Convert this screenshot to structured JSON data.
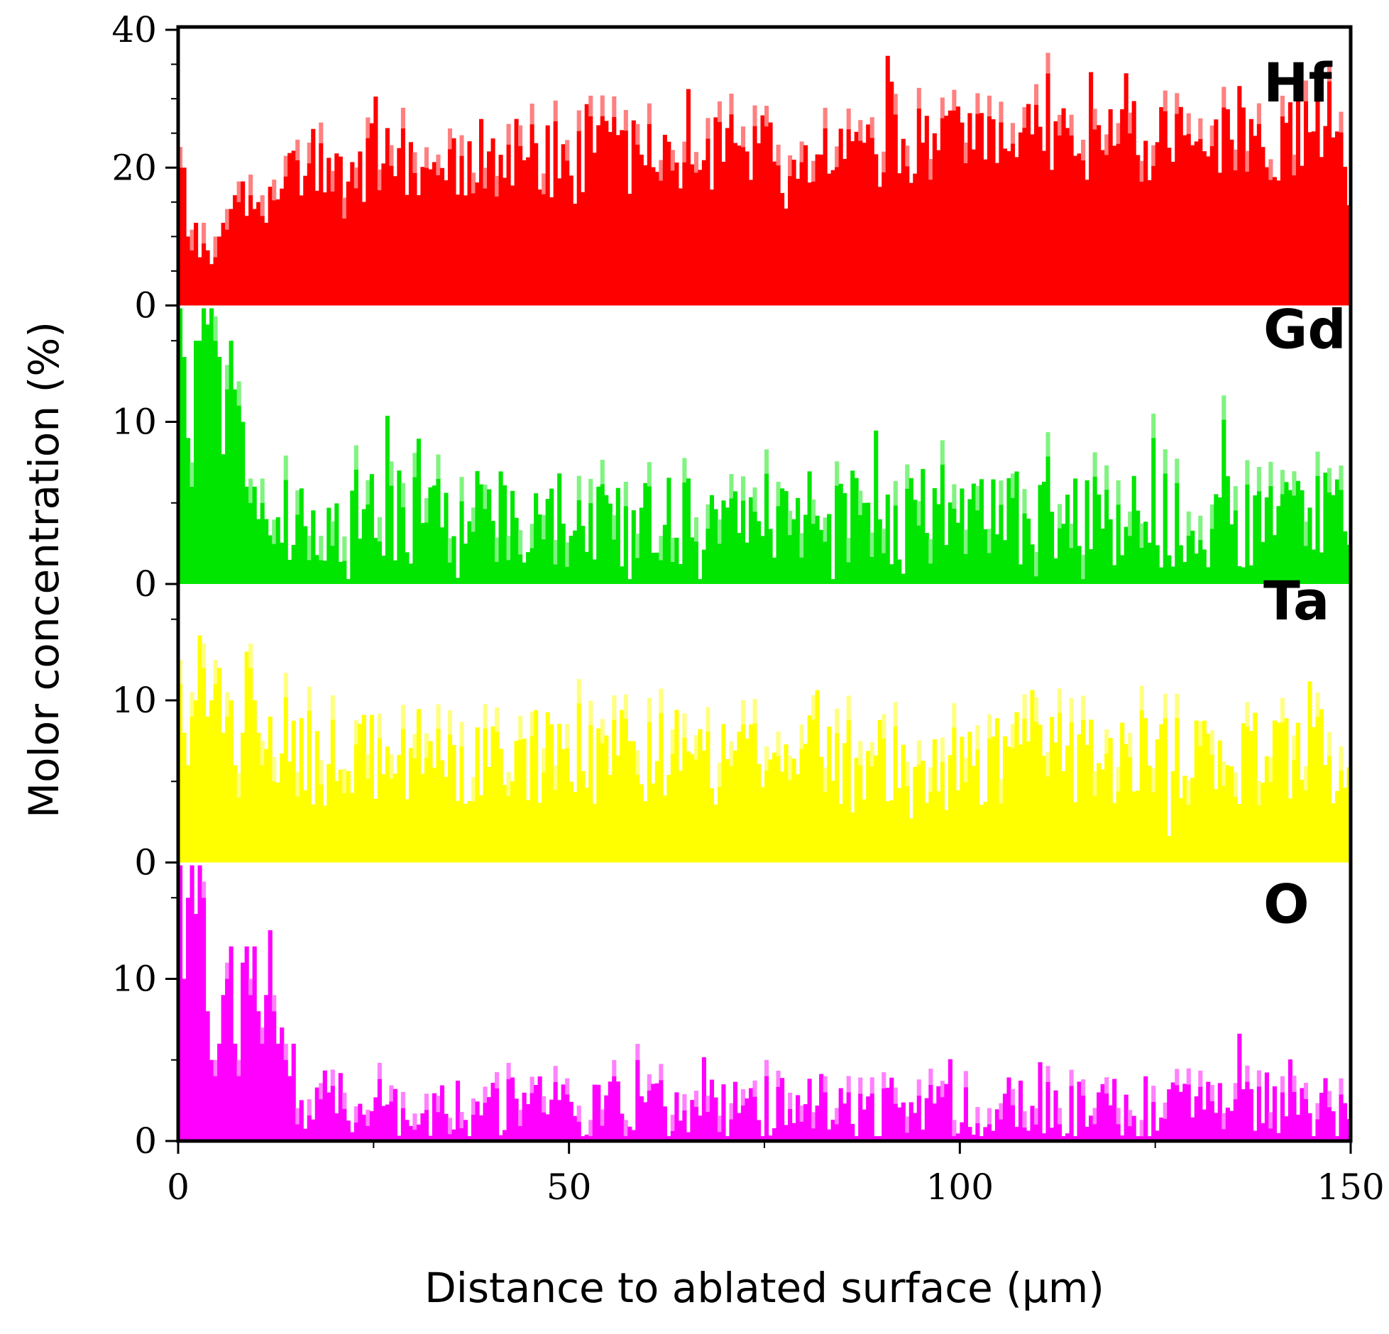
{
  "chart_data": {
    "type": "bar",
    "title": "",
    "xlabel": "Distance to ablated surface (μm)",
    "ylabel": "Molor concentration (%)",
    "xlim": [
      0,
      150
    ],
    "x_ticks": [
      "0",
      "50",
      "100",
      "150"
    ],
    "grid": false,
    "bin_width": 0.5,
    "panels": [
      {
        "name": "Hf",
        "color": "#ff0000",
        "ylim": [
          0,
          40
        ],
        "y_ticks": [
          "0",
          "20",
          "40"
        ],
        "baseline": 20,
        "trend": 4.5,
        "amplitude": 6,
        "seed": 11,
        "start_values": [
          20,
          20,
          10,
          8,
          12,
          7,
          9,
          8,
          6,
          7,
          10,
          12,
          11,
          14,
          16,
          15,
          18,
          13,
          16,
          14,
          15,
          13,
          12
        ]
      },
      {
        "name": "Gd",
        "color": "#00e600",
        "ylim": [
          0,
          17
        ],
        "y_ticks": [
          "0",
          "10"
        ],
        "baseline": 4,
        "trend": 0,
        "amplitude": 3,
        "seed": 23,
        "start_values": [
          17,
          14,
          9,
          6,
          15,
          15,
          17,
          16,
          17,
          15,
          14,
          8,
          12,
          15,
          12,
          11,
          10,
          6,
          5,
          6,
          4,
          5,
          4,
          3
        ]
      },
      {
        "name": "Ta",
        "color": "#ffff00",
        "ylim": [
          0,
          17
        ],
        "y_ticks": [
          "0",
          "10"
        ],
        "baseline": 6.5,
        "trend": 0,
        "amplitude": 3,
        "seed": 37,
        "start_values": [
          11,
          8,
          6,
          9,
          10,
          14,
          12,
          9,
          10,
          11,
          12,
          8,
          9,
          10,
          6,
          4,
          8,
          13,
          12,
          10,
          8,
          6,
          7,
          9
        ]
      },
      {
        "name": "O",
        "color": "#ff00ff",
        "ylim": [
          0,
          17
        ],
        "y_ticks": [
          "0",
          "10"
        ],
        "baseline": 2,
        "trend": 0,
        "amplitude": 2,
        "seed": 53,
        "start_values": [
          17,
          10,
          15,
          17,
          14,
          17,
          15,
          8,
          5,
          4,
          6,
          9,
          10,
          12,
          6,
          4,
          11,
          12,
          9,
          12,
          8,
          6,
          9,
          13,
          8,
          6,
          7,
          5,
          4,
          6
        ]
      }
    ]
  }
}
